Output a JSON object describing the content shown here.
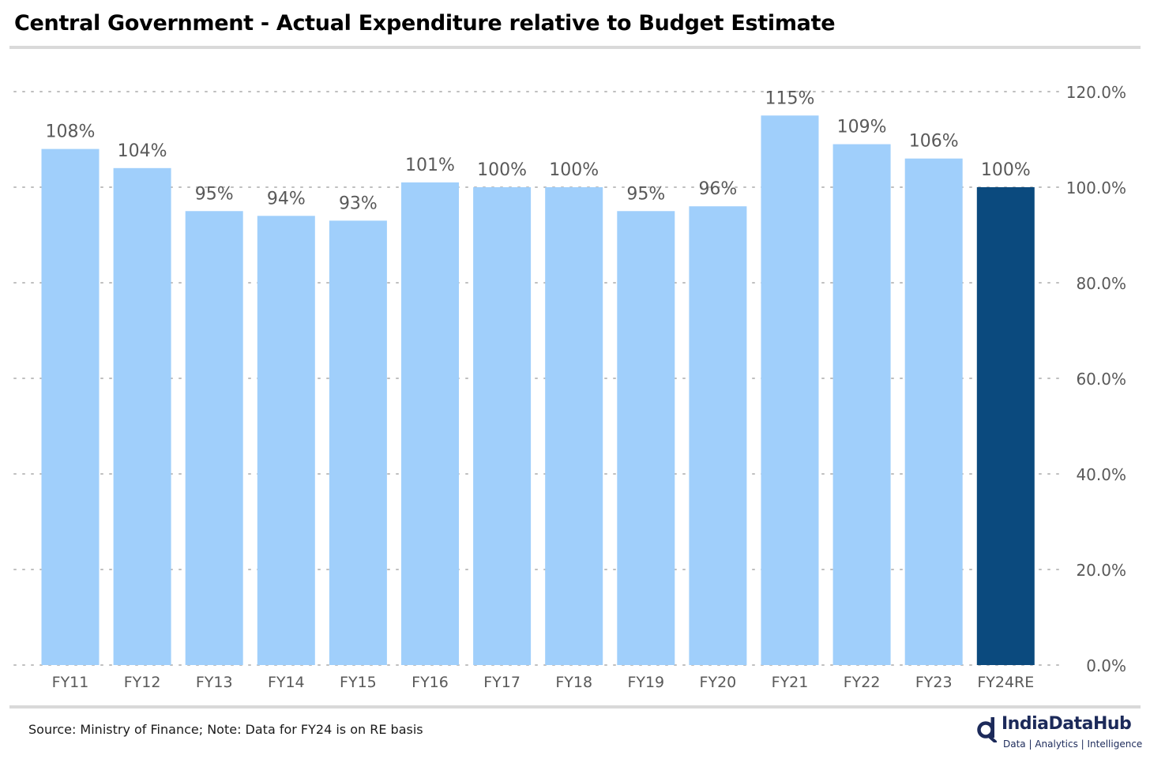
{
  "title": "Central Government - Actual Expenditure relative to Budget Estimate",
  "footer": {
    "source": "Source: Ministry of Finance; Note: Data for FY24 is on RE basis",
    "brand_name": "IndiaDataHub",
    "brand_tagline": "Data | Analytics | Intelligence"
  },
  "colors": {
    "bar": "#a0cffb",
    "bar_highlight": "#0b4a7e",
    "grid": "#bfbfbf",
    "label": "#595959",
    "brand": "#1c2a5a"
  },
  "chart_data": {
    "type": "bar",
    "categories": [
      "FY11",
      "FY12",
      "FY13",
      "FY14",
      "FY15",
      "FY16",
      "FY17",
      "FY18",
      "FY19",
      "FY20",
      "FY21",
      "FY22",
      "FY23",
      "FY24RE"
    ],
    "values": [
      108,
      104,
      95,
      94,
      93,
      101,
      100,
      100,
      95,
      96,
      115,
      109,
      106,
      100
    ],
    "data_labels": [
      "108%",
      "104%",
      "95%",
      "94%",
      "93%",
      "101%",
      "100%",
      "100%",
      "95%",
      "96%",
      "115%",
      "109%",
      "106%",
      "100%"
    ],
    "highlight_category": "FY24RE",
    "ylim": [
      0,
      120
    ],
    "yticks": [
      0,
      20,
      40,
      60,
      80,
      100,
      120
    ],
    "ytick_labels": [
      "0.0%",
      "20.0%",
      "40.0%",
      "60.0%",
      "80.0%",
      "100.0%",
      "120.0%"
    ],
    "y_axis_side": "right",
    "grid": true,
    "grid_style": "dotted",
    "legend": "none"
  }
}
